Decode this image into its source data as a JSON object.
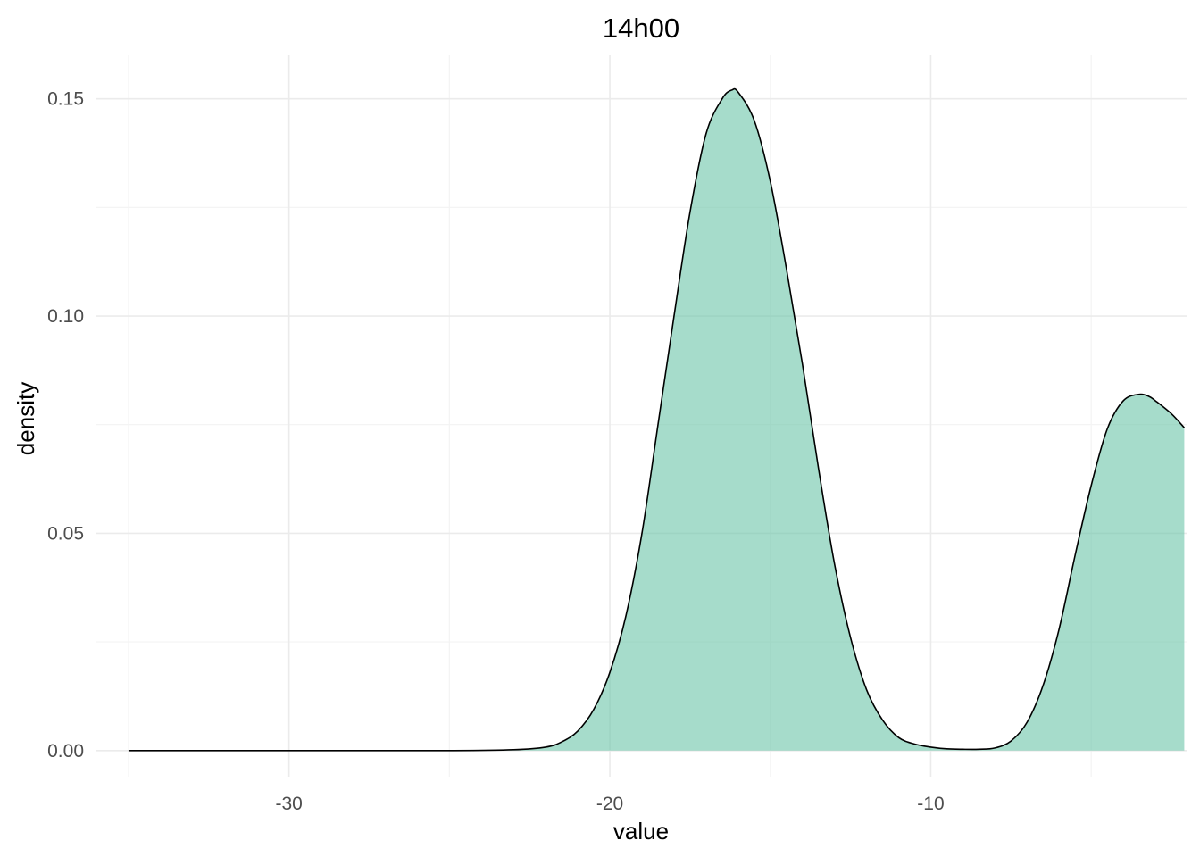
{
  "chart_data": {
    "type": "area",
    "title": "14h00",
    "xlabel": "value",
    "ylabel": "density",
    "xlim": [
      -36,
      -2
    ],
    "ylim": [
      -0.006,
      0.16
    ],
    "x_ticks": [
      -30,
      -20,
      -10
    ],
    "x_tick_labels": [
      "-30",
      "-20",
      "-10"
    ],
    "y_ticks": [
      0,
      0.05,
      0.1,
      0.15
    ],
    "y_tick_labels": [
      "0.00",
      "0.05",
      "0.10",
      "0.15"
    ],
    "grid": true,
    "legend": "none",
    "fill_color": "#66c2a5",
    "line_color": "#000000",
    "series": [
      {
        "x": [
          -35,
          -30,
          -25,
          -23,
          -22,
          -21.5,
          -21,
          -20.5,
          -20,
          -19.5,
          -19,
          -18.5,
          -18,
          -17.5,
          -17,
          -16.5,
          -16.2,
          -16,
          -15.5,
          -15,
          -14.5,
          -14,
          -13.5,
          -13,
          -12.5,
          -12,
          -11.5,
          -11,
          -10.5,
          -10,
          -9.5,
          -9,
          -8.5,
          -8,
          -7.5,
          -7,
          -6.5,
          -6,
          -5.5,
          -5,
          -4.5,
          -4,
          -3.5,
          -3.2,
          -3,
          -2.5,
          -2.1
        ],
        "y": [
          0,
          0,
          0,
          0.0002,
          0.0008,
          0.002,
          0.0045,
          0.0095,
          0.018,
          0.031,
          0.05,
          0.075,
          0.1,
          0.124,
          0.142,
          0.15,
          0.152,
          0.1515,
          0.145,
          0.131,
          0.111,
          0.089,
          0.065,
          0.043,
          0.026,
          0.014,
          0.007,
          0.003,
          0.0015,
          0.0008,
          0.0004,
          0.0003,
          0.0003,
          0.0006,
          0.0022,
          0.0065,
          0.015,
          0.028,
          0.045,
          0.061,
          0.074,
          0.0805,
          0.082,
          0.0815,
          0.0805,
          0.0775,
          0.0743
        ]
      }
    ]
  }
}
